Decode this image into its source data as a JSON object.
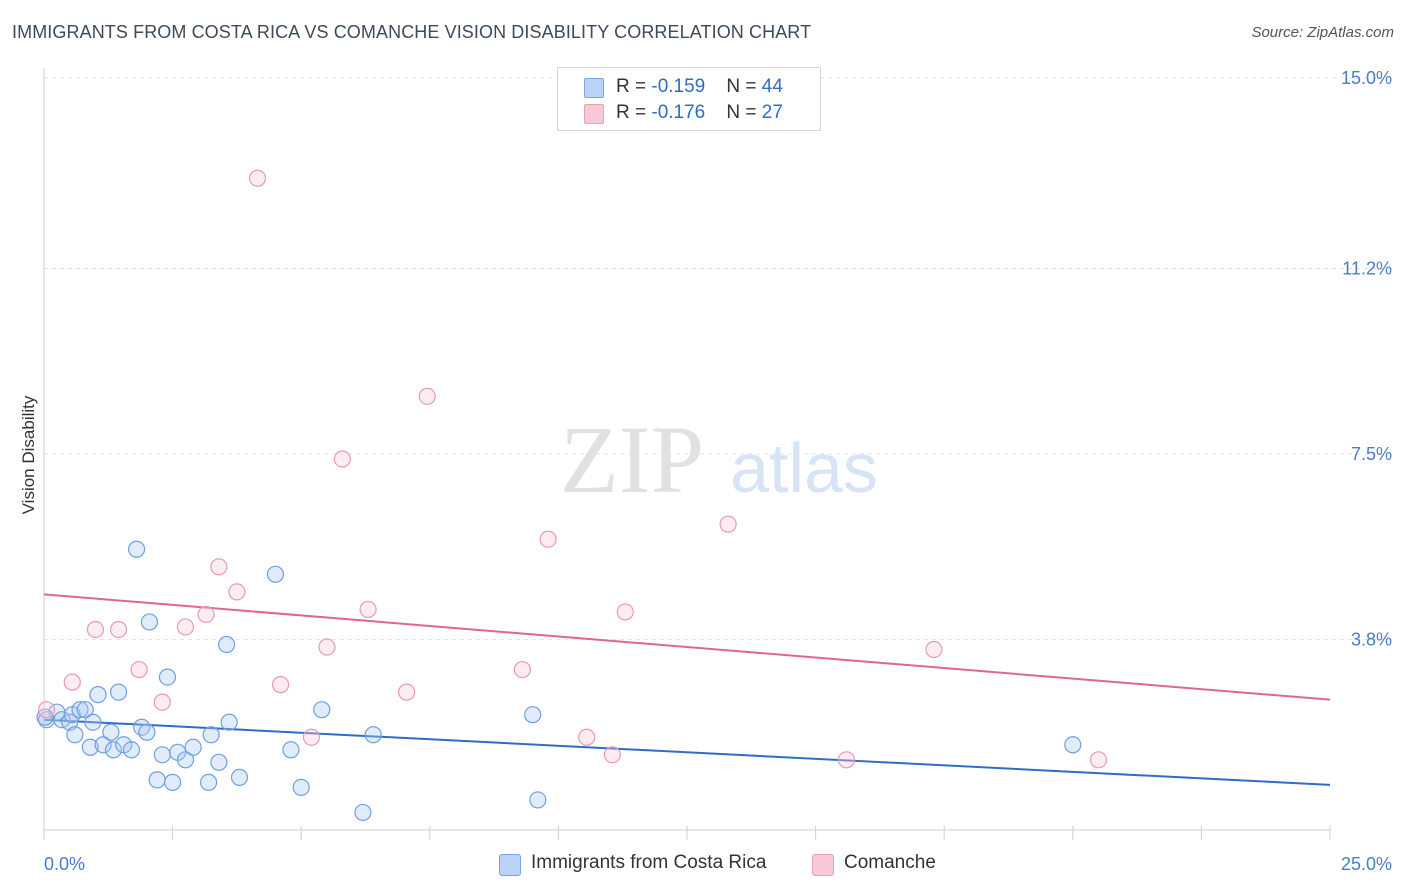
{
  "header": {
    "title": "IMMIGRANTS FROM COSTA RICA VS COMANCHE VISION DISABILITY CORRELATION CHART",
    "source": "Source: ZipAtlas.com"
  },
  "watermark": {
    "zip": "ZIP",
    "atlas": "atlas"
  },
  "legend": {
    "rows": [
      {
        "r_label": "R = ",
        "r_value": "-0.159",
        "n_label": "N = ",
        "n_value": "44",
        "color": "#b8d3f5",
        "border": "#7aa6dd"
      },
      {
        "r_label": "R = ",
        "r_value": "-0.176",
        "n_label": "N = ",
        "n_value": "27",
        "color": "#f8c8d6",
        "border": "#e8a0b6"
      }
    ]
  },
  "chart_data": {
    "type": "scatter",
    "title": "IMMIGRANTS FROM COSTA RICA VS COMANCHE VISION DISABILITY CORRELATION CHART",
    "xlabel": "",
    "ylabel": "Vision Disability",
    "xlim": [
      0,
      25
    ],
    "ylim": [
      0,
      15
    ],
    "x_tick_labels": [
      "0.0%",
      "25.0%"
    ],
    "y_ticks": [
      3.8,
      7.5,
      11.2,
      15.0
    ],
    "y_tick_labels": [
      "3.8%",
      "7.5%",
      "11.2%",
      "15.0%"
    ],
    "grid": true,
    "legend_position": "top-center",
    "series": [
      {
        "name": "Immigrants from Costa Rica",
        "color": "#6fa0e0",
        "fill": "rgba(170,200,240,0.35)",
        "trend_color": "#2f6cc7",
        "trend": {
          "x0": 0,
          "y0": 2.2,
          "x1": 25,
          "y1": 0.9
        },
        "points": [
          [
            0.05,
            2.2
          ],
          [
            0.25,
            2.35
          ],
          [
            0.35,
            2.2
          ],
          [
            0.5,
            2.15
          ],
          [
            0.55,
            2.3
          ],
          [
            0.6,
            1.9
          ],
          [
            0.7,
            2.4
          ],
          [
            0.8,
            2.4
          ],
          [
            0.9,
            1.65
          ],
          [
            0.95,
            2.15
          ],
          [
            1.05,
            2.7
          ],
          [
            1.15,
            1.7
          ],
          [
            1.3,
            1.95
          ],
          [
            1.35,
            1.6
          ],
          [
            1.45,
            2.75
          ],
          [
            1.55,
            1.7
          ],
          [
            1.7,
            1.6
          ],
          [
            1.8,
            5.6
          ],
          [
            1.9,
            2.05
          ],
          [
            2.0,
            1.95
          ],
          [
            2.05,
            4.15
          ],
          [
            2.2,
            1.0
          ],
          [
            2.3,
            1.5
          ],
          [
            2.4,
            3.05
          ],
          [
            2.5,
            0.95
          ],
          [
            2.6,
            1.55
          ],
          [
            2.75,
            1.4
          ],
          [
            2.9,
            1.65
          ],
          [
            3.2,
            0.95
          ],
          [
            3.25,
            1.9
          ],
          [
            3.4,
            1.35
          ],
          [
            3.55,
            3.7
          ],
          [
            3.6,
            2.15
          ],
          [
            3.8,
            1.05
          ],
          [
            4.5,
            5.1
          ],
          [
            4.8,
            1.6
          ],
          [
            5.0,
            0.85
          ],
          [
            5.4,
            2.4
          ],
          [
            6.2,
            0.35
          ],
          [
            6.4,
            1.9
          ],
          [
            9.5,
            2.3
          ],
          [
            9.6,
            0.6
          ],
          [
            20.0,
            1.7
          ],
          [
            0.02,
            2.25
          ]
        ]
      },
      {
        "name": "Comanche",
        "color": "#e89ab2",
        "fill": "rgba(248,200,214,0.35)",
        "trend_color": "#e06690",
        "trend": {
          "x0": 0,
          "y0": 4.7,
          "x1": 25,
          "y1": 2.6
        },
        "points": [
          [
            0.05,
            2.4
          ],
          [
            0.55,
            2.95
          ],
          [
            1.0,
            4.0
          ],
          [
            1.45,
            4.0
          ],
          [
            1.85,
            3.2
          ],
          [
            2.3,
            2.55
          ],
          [
            2.75,
            4.05
          ],
          [
            3.15,
            4.3
          ],
          [
            3.4,
            5.25
          ],
          [
            3.75,
            4.75
          ],
          [
            4.15,
            13.0
          ],
          [
            4.6,
            2.9
          ],
          [
            5.2,
            1.85
          ],
          [
            5.5,
            3.65
          ],
          [
            5.8,
            7.4
          ],
          [
            6.3,
            4.4
          ],
          [
            7.05,
            2.75
          ],
          [
            7.45,
            8.65
          ],
          [
            9.3,
            3.2
          ],
          [
            9.8,
            5.8
          ],
          [
            10.55,
            1.85
          ],
          [
            11.05,
            1.5
          ],
          [
            11.3,
            4.35
          ],
          [
            13.3,
            6.1
          ],
          [
            15.6,
            1.4
          ],
          [
            17.3,
            3.6
          ],
          [
            20.5,
            1.4
          ]
        ]
      }
    ]
  }
}
